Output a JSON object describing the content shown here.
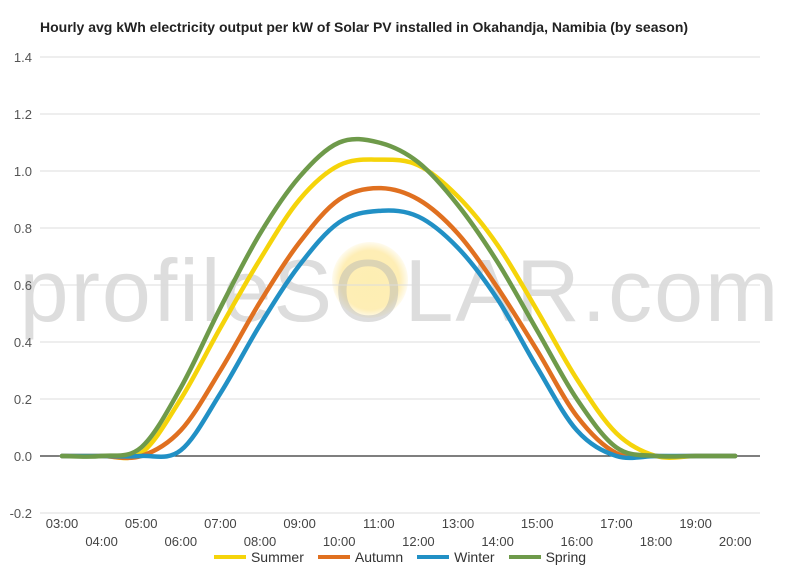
{
  "chart_data": {
    "type": "line",
    "title": "Hourly avg kWh electricity output per kW of Solar PV installed in Okahandja, Namibia (by season)",
    "xlabel": "",
    "ylabel": "",
    "watermark": "profileSOLAR.com",
    "ylim": [
      -0.2,
      1.4
    ],
    "yticks": [
      "-0.2",
      "0.0",
      "0.2",
      "0.4",
      "0.6",
      "0.8",
      "1.0",
      "1.2",
      "1.4"
    ],
    "grid": true,
    "legend_position": "bottom",
    "x": [
      "03:00",
      "04:00",
      "05:00",
      "06:00",
      "07:00",
      "08:00",
      "09:00",
      "10:00",
      "11:00",
      "12:00",
      "13:00",
      "14:00",
      "15:00",
      "16:00",
      "17:00",
      "18:00",
      "19:00",
      "20:00"
    ],
    "series": [
      {
        "name": "Summer",
        "color": "#f5d40a",
        "values": [
          0,
          0,
          0.01,
          0.2,
          0.45,
          0.69,
          0.9,
          1.02,
          1.04,
          1.02,
          0.91,
          0.74,
          0.51,
          0.27,
          0.08,
          0,
          0,
          0
        ]
      },
      {
        "name": "Autumn",
        "color": "#e07020",
        "values": [
          0,
          0,
          0,
          0.09,
          0.3,
          0.54,
          0.75,
          0.9,
          0.94,
          0.9,
          0.78,
          0.59,
          0.37,
          0.14,
          0.01,
          0,
          0,
          0
        ]
      },
      {
        "name": "Winter",
        "color": "#2190c5",
        "values": [
          0,
          0,
          0,
          0.02,
          0.22,
          0.46,
          0.67,
          0.82,
          0.86,
          0.84,
          0.73,
          0.55,
          0.31,
          0.09,
          0,
          0,
          0,
          0
        ]
      },
      {
        "name": "Spring",
        "color": "#6e9a4a",
        "values": [
          0,
          0,
          0.03,
          0.24,
          0.52,
          0.78,
          0.98,
          1.1,
          1.1,
          1.03,
          0.88,
          0.68,
          0.44,
          0.2,
          0.03,
          0,
          0,
          0
        ]
      }
    ]
  }
}
